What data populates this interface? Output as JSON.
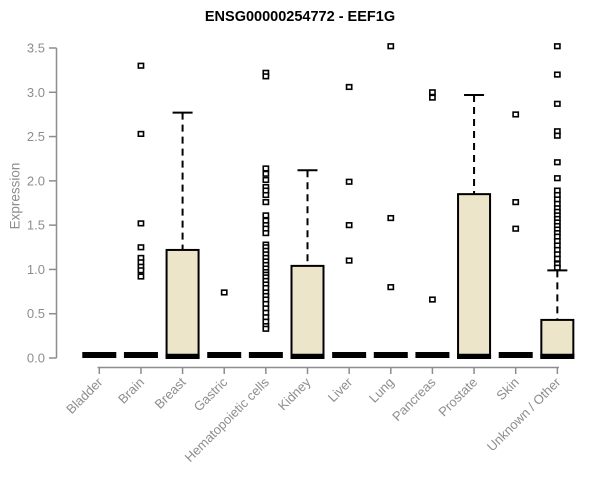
{
  "chart_data": {
    "type": "boxplot",
    "title": "ENSG00000254772 - EEF1G",
    "ylabel": "Expression",
    "xlabel": "",
    "ylim": [
      0,
      3.5
    ],
    "yticks": [
      0.0,
      0.5,
      1.0,
      1.5,
      2.0,
      2.5,
      3.0,
      3.5
    ],
    "grid": false,
    "legend": "none",
    "colors": {
      "box_fill": "#ece5ca",
      "box_stroke": "#000000",
      "axis": "#8d8d8d",
      "tick_label": "#8d8d8d",
      "title": "#000000",
      "outlier": "#000000",
      "background": "#ffffff"
    },
    "categories": [
      "Bladder",
      "Brain",
      "Breast",
      "Gastric",
      "Hematopoietic cells",
      "Kidney",
      "Liver",
      "Lung",
      "Pancreas",
      "Prostate",
      "Skin",
      "Unknown / Other"
    ],
    "series": [
      {
        "category": "Bladder",
        "q1": 0,
        "median": 0.01,
        "q3": 0.02,
        "whisker_low": 0,
        "whisker_high": 0.02,
        "outliers": []
      },
      {
        "category": "Brain",
        "q1": 0,
        "median": 0.01,
        "q3": 0.02,
        "whisker_low": 0,
        "whisker_high": 0.02,
        "outliers": [
          3.3,
          2.53,
          1.52,
          1.25,
          1.13,
          1.08,
          1.03,
          0.99,
          0.92
        ]
      },
      {
        "category": "Breast",
        "q1": 0,
        "median": 0.02,
        "q3": 1.22,
        "whisker_low": 0,
        "whisker_high": 2.77,
        "outliers": []
      },
      {
        "category": "Gastric",
        "q1": 0,
        "median": 0.01,
        "q3": 0.02,
        "whisker_low": 0,
        "whisker_high": 0.02,
        "outliers": [
          0.74
        ]
      },
      {
        "category": "Hematopoietic cells",
        "q1": 0,
        "median": 0.01,
        "q3": 0.02,
        "whisker_low": 0,
        "whisker_high": 0.02,
        "outliers": [
          3.22,
          3.18,
          2.14,
          2.08,
          2.01,
          1.93,
          1.89,
          1.84,
          1.76,
          1.61,
          1.55,
          1.5,
          1.46,
          1.41,
          1.28,
          1.25,
          1.21,
          1.17,
          1.13,
          1.09,
          1.05,
          1.01,
          0.97,
          0.94,
          0.91,
          0.87,
          0.83,
          0.79,
          0.74,
          0.7,
          0.66,
          0.61,
          0.56,
          0.51,
          0.46,
          0.41,
          0.36,
          0.33
        ]
      },
      {
        "category": "Kidney",
        "q1": 0,
        "median": 0.02,
        "q3": 1.04,
        "whisker_low": 0,
        "whisker_high": 2.12,
        "outliers": []
      },
      {
        "category": "Liver",
        "q1": 0,
        "median": 0.01,
        "q3": 0.02,
        "whisker_low": 0,
        "whisker_high": 0.02,
        "outliers": [
          3.06,
          1.99,
          1.5,
          1.1
        ]
      },
      {
        "category": "Lung",
        "q1": 0,
        "median": 0.01,
        "q3": 0.02,
        "whisker_low": 0,
        "whisker_high": 0.02,
        "outliers": [
          3.52,
          1.58,
          0.8
        ]
      },
      {
        "category": "Pancreas",
        "q1": 0,
        "median": 0.01,
        "q3": 0.02,
        "whisker_low": 0,
        "whisker_high": 0.02,
        "outliers": [
          3.0,
          2.94,
          0.66
        ]
      },
      {
        "category": "Prostate",
        "q1": 0,
        "median": 0.02,
        "q3": 1.85,
        "whisker_low": 0,
        "whisker_high": 2.97,
        "outliers": []
      },
      {
        "category": "Skin",
        "q1": 0,
        "median": 0.01,
        "q3": 0.02,
        "whisker_low": 0,
        "whisker_high": 0.02,
        "outliers": [
          2.75,
          1.76,
          1.46
        ]
      },
      {
        "category": "Unknown / Other",
        "q1": 0,
        "median": 0.02,
        "q3": 0.43,
        "whisker_low": 0,
        "whisker_high": 0.99,
        "outliers": [
          3.52,
          3.2,
          2.87,
          2.56,
          2.51,
          2.21,
          2.03,
          1.89,
          1.84,
          1.79,
          1.74,
          1.69,
          1.65,
          1.61,
          1.57,
          1.53,
          1.49,
          1.45,
          1.41,
          1.37,
          1.32,
          1.27,
          1.22,
          1.17,
          1.12,
          1.06,
          1.02
        ]
      }
    ]
  }
}
